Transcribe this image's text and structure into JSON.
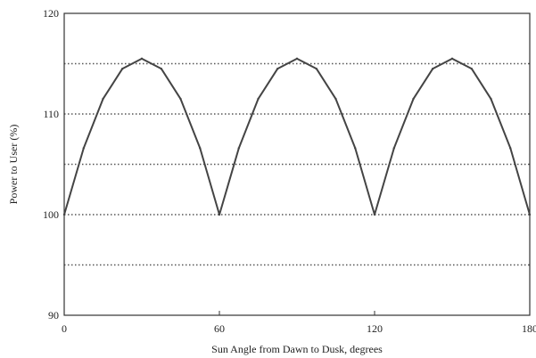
{
  "chart_data": {
    "type": "line",
    "title": "",
    "xlabel": "Sun Angle from Dawn to Dusk, degrees",
    "ylabel": "Power to User (%)",
    "xlim": [
      0,
      180
    ],
    "ylim": [
      90,
      120
    ],
    "xticks": [
      0,
      60,
      120,
      180
    ],
    "yticks": [
      90,
      100,
      110,
      120
    ],
    "gridlines_y": [
      95,
      100,
      105,
      110,
      115
    ],
    "grid": "horizontal-dotted",
    "legend": "none",
    "colors": {
      "line": "#444444",
      "grid": "#555555",
      "axis": "#333333"
    },
    "series": [
      {
        "x": [
          0,
          7.5,
          15,
          22.5,
          30,
          37.5,
          45,
          52.5,
          60,
          67.5,
          75,
          82.5,
          90,
          97.5,
          105,
          112.5,
          120,
          127.5,
          135,
          142.5,
          150,
          157.5,
          165,
          172.5,
          180
        ],
        "values": [
          100,
          106.6,
          111.5,
          114.5,
          115.5,
          114.5,
          111.5,
          106.6,
          100,
          106.6,
          111.5,
          114.5,
          115.5,
          114.5,
          111.5,
          106.6,
          100,
          106.6,
          111.5,
          114.5,
          115.5,
          114.5,
          111.5,
          106.6,
          100
        ]
      }
    ]
  }
}
